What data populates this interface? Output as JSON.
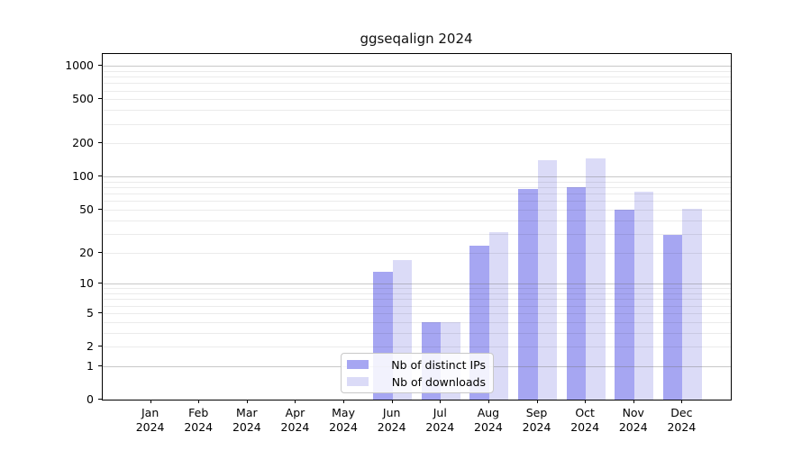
{
  "title": "ggseqalign 2024",
  "chart_data": {
    "type": "bar",
    "title": "ggseqalign 2024",
    "categories": [
      "Jan",
      "Feb",
      "Mar",
      "Apr",
      "May",
      "Jun",
      "Jul",
      "Aug",
      "Sep",
      "Oct",
      "Nov",
      "Dec"
    ],
    "year": "2024",
    "series": [
      {
        "name": "Nb of distinct IPs",
        "color": "#a6a6f2",
        "values": [
          0,
          0,
          0,
          0,
          0,
          13,
          4,
          23,
          78,
          81,
          50,
          29
        ]
      },
      {
        "name": "Nb of downloads",
        "color": "#dbdbf7",
        "values": [
          0,
          0,
          0,
          0,
          0,
          17,
          4,
          31,
          140,
          146,
          73,
          51
        ]
      }
    ],
    "yscale": "log1p",
    "yticks": [
      0,
      1,
      2,
      5,
      10,
      20,
      50,
      100,
      200,
      500,
      1000
    ],
    "ylim": [
      0,
      1300
    ],
    "xlabel": "",
    "ylabel": "",
    "grid": true,
    "legend_position": "lower center"
  },
  "colors": {
    "bar_dark": "#a6a6f2",
    "bar_light": "#dbdbf7",
    "spine": "#000000",
    "grid_minor": "#ebebeb",
    "grid_major": "#c8c8c8",
    "legend_border": "#c8c8c8",
    "legend_bg": "rgba(255,255,255,0.85)"
  }
}
